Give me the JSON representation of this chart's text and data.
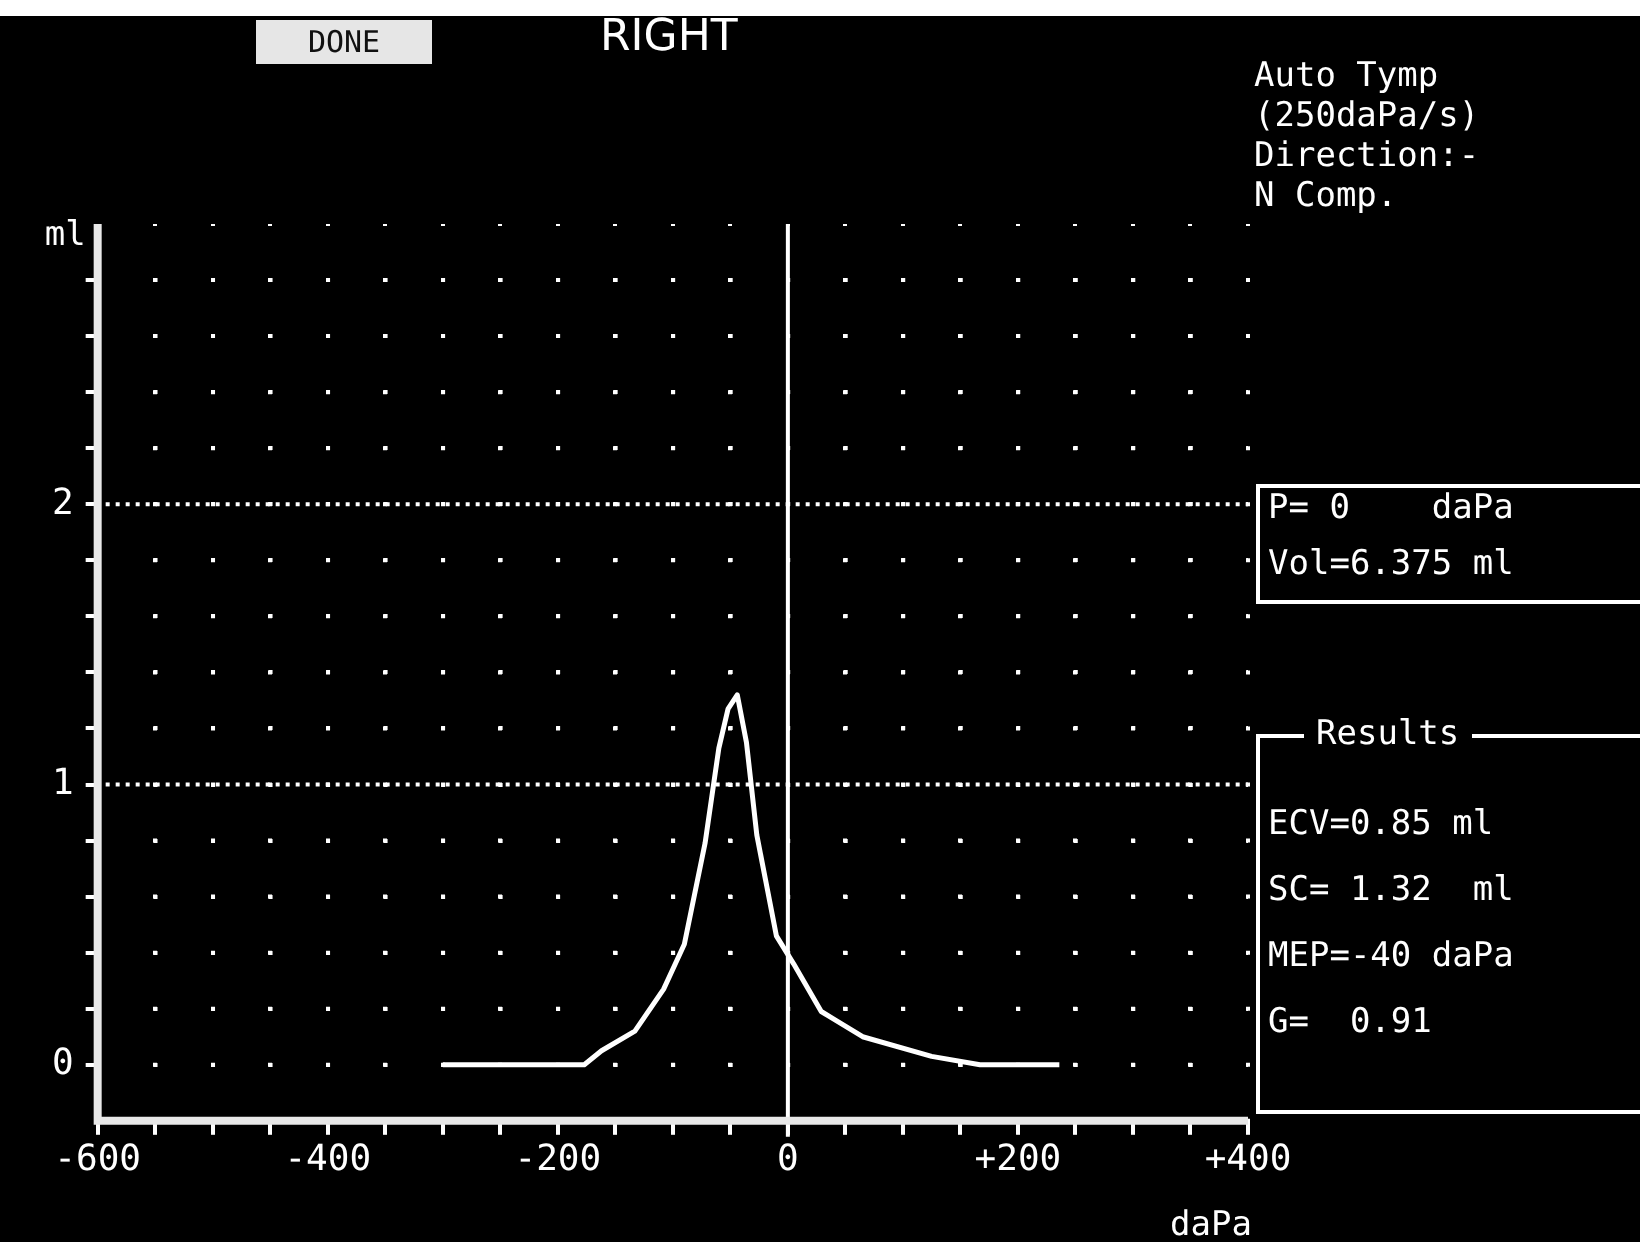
{
  "chart_data": {
    "type": "line",
    "title": "RIGHT",
    "xlabel": "daPa",
    "ylabel": "ml",
    "x": [
      -300,
      -177,
      -162,
      -133,
      -108,
      -90,
      -72,
      -60,
      -52,
      -44,
      -36,
      -27,
      -10,
      5,
      29,
      65,
      125,
      167,
      236
    ],
    "series": [
      {
        "color": "#ffffff",
        "values": [
          0,
          0,
          0.05,
          0.12,
          0.27,
          0.43,
          0.79,
          1.13,
          1.27,
          1.32,
          1.15,
          0.82,
          0.46,
          0.36,
          0.19,
          0.1,
          0.03,
          0,
          0
        ]
      }
    ],
    "xlim": [
      -600,
      400
    ],
    "xticks": [
      -600,
      {
        "value": -550,
        "label": null
      },
      {
        "value": -500,
        "label": null
      },
      {
        "value": -450,
        "label": null
      },
      -400,
      {
        "value": -350,
        "label": null
      },
      {
        "value": -300,
        "label": null
      },
      {
        "value": -250,
        "label": null
      },
      -200,
      {
        "value": -150,
        "label": null
      },
      {
        "value": -100,
        "label": null
      },
      {
        "value": -50,
        "label": null
      },
      0,
      {
        "value": 50,
        "label": null
      },
      {
        "value": 100,
        "label": null
      },
      {
        "value": 150,
        "label": null
      },
      {
        "value": 200,
        "label": "+200"
      },
      {
        "value": 250,
        "label": null
      },
      {
        "value": 300,
        "label": null
      },
      {
        "value": 350,
        "label": null
      },
      {
        "value": 400,
        "label": "+400"
      }
    ],
    "ylim": [
      -0.2,
      3.0
    ],
    "yticks": [
      0,
      {
        "value": 0.2,
        "label": null
      },
      {
        "value": 0.4,
        "label": null
      },
      {
        "value": 0.6,
        "label": null
      },
      {
        "value": 0.8,
        "label": null
      },
      1,
      {
        "value": 1.2,
        "label": null
      },
      {
        "value": 1.4,
        "label": null
      },
      {
        "value": 1.6,
        "label": null
      },
      {
        "value": 1.8,
        "label": null
      },
      2,
      {
        "value": 2.2,
        "label": null
      },
      {
        "value": 2.4,
        "label": null
      },
      {
        "value": 2.6,
        "label": null
      },
      {
        "value": 2.8,
        "label": null
      }
    ],
    "ref_lines": [
      {
        "axis": "x",
        "value": 0,
        "color": "#ffffff"
      }
    ],
    "grid": true,
    "marker": "none",
    "line_style": "solid",
    "annotations": [
      "DONE",
      "Auto Tymp",
      "(250daPa/s)",
      "Direction:-",
      "N Comp.",
      "P= 0    daPa",
      "Vol=6.375 ml",
      "Results",
      "ECV=0.85 ml",
      "SC= 1.32  ml",
      "MEP=-40 daPa",
      "G=  0.91"
    ]
  }
}
